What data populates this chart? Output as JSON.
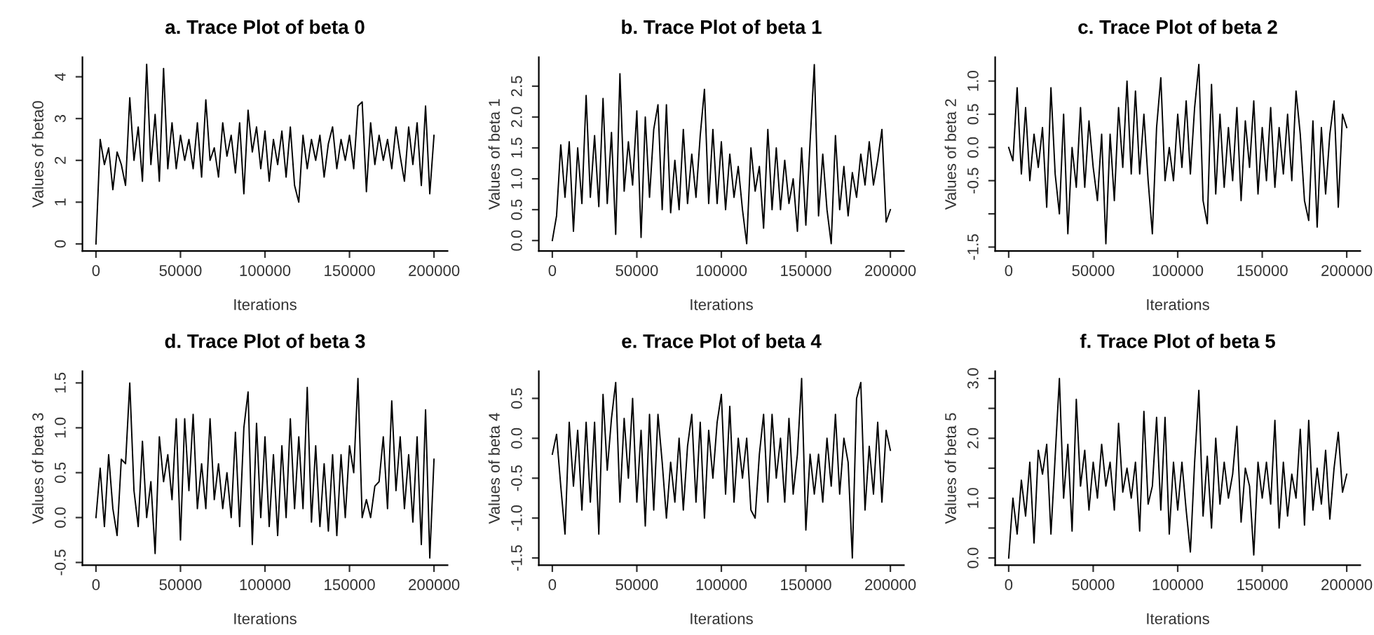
{
  "chart_data": [
    {
      "type": "line",
      "title": "a. Trace Plot of beta 0",
      "xlabel": "Iterations",
      "ylabel": "Values of beta0",
      "color": "#000000",
      "xlim": [
        -8000,
        208000
      ],
      "ylim": [
        -0.17,
        4.47
      ],
      "xticks": [
        0,
        50000,
        100000,
        150000,
        200000
      ],
      "yticks": [
        0,
        1,
        2,
        3,
        4
      ],
      "x": [
        0,
        2500,
        5000,
        7500,
        10000,
        12500,
        15000,
        17500,
        20000,
        22500,
        25000,
        27500,
        30000,
        32500,
        35000,
        37500,
        40000,
        42500,
        45000,
        47500,
        50000,
        52500,
        55000,
        57500,
        60000,
        62500,
        65000,
        67500,
        70000,
        72500,
        75000,
        77500,
        80000,
        82500,
        85000,
        87500,
        90000,
        92500,
        95000,
        97500,
        100000,
        102500,
        105000,
        107500,
        110000,
        112500,
        115000,
        117500,
        120000,
        122500,
        125000,
        127500,
        130000,
        132500,
        135000,
        137500,
        140000,
        142500,
        145000,
        147500,
        150000,
        152500,
        155000,
        157500,
        160000,
        162500,
        165000,
        167500,
        170000,
        172500,
        175000,
        177500,
        180000,
        182500,
        185000,
        187500,
        190000,
        192500,
        195000,
        197500,
        200000
      ],
      "values": [
        0,
        2.5,
        1.9,
        2.3,
        1.3,
        2.2,
        1.9,
        1.4,
        3.5,
        2.0,
        2.8,
        1.5,
        4.3,
        1.9,
        3.1,
        1.5,
        4.2,
        1.8,
        2.9,
        1.8,
        2.6,
        2.0,
        2.5,
        1.8,
        2.9,
        1.6,
        3.45,
        2.0,
        2.3,
        1.6,
        2.9,
        2.1,
        2.6,
        1.7,
        2.9,
        1.2,
        3.2,
        2.2,
        2.8,
        1.8,
        2.7,
        1.5,
        2.5,
        1.9,
        2.7,
        1.6,
        2.8,
        1.4,
        1.0,
        2.6,
        1.8,
        2.5,
        2.0,
        2.6,
        1.6,
        2.4,
        2.8,
        1.8,
        2.5,
        2.0,
        2.6,
        1.8,
        3.3,
        3.4,
        1.25,
        2.9,
        1.9,
        2.6,
        2.0,
        2.5,
        1.8,
        2.8,
        2.1,
        1.5,
        2.8,
        1.9,
        2.9,
        1.4,
        3.3,
        1.2,
        2.6
      ]
    },
    {
      "type": "line",
      "title": "b. Trace Plot of beta 1",
      "xlabel": "Iterations",
      "ylabel": "Values of beta 1",
      "color": "#000000",
      "xlim": [
        -8000,
        208000
      ],
      "ylim": [
        -0.17,
        2.97
      ],
      "xticks": [
        0,
        50000,
        100000,
        150000,
        200000
      ],
      "yticks": [
        {
          "value": 0,
          "label": "0.0"
        },
        0.5,
        {
          "value": 1,
          "label": "1.0"
        },
        1.5,
        {
          "value": 2,
          "label": "2.0"
        },
        2.5
      ],
      "x": [
        0,
        2500,
        5000,
        7500,
        10000,
        12500,
        15000,
        17500,
        20000,
        22500,
        25000,
        27500,
        30000,
        32500,
        35000,
        37500,
        40000,
        42500,
        45000,
        47500,
        50000,
        52500,
        55000,
        57500,
        60000,
        62500,
        65000,
        67500,
        70000,
        72500,
        75000,
        77500,
        80000,
        82500,
        85000,
        87500,
        90000,
        92500,
        95000,
        97500,
        100000,
        102500,
        105000,
        107500,
        110000,
        112500,
        115000,
        117500,
        120000,
        122500,
        125000,
        127500,
        130000,
        132500,
        135000,
        137500,
        140000,
        142500,
        145000,
        147500,
        150000,
        152500,
        155000,
        157500,
        160000,
        162500,
        165000,
        167500,
        170000,
        172500,
        175000,
        177500,
        180000,
        182500,
        185000,
        187500,
        190000,
        192500,
        195000,
        197500,
        200000
      ],
      "values": [
        0,
        0.4,
        1.55,
        0.7,
        1.6,
        0.15,
        1.5,
        0.6,
        2.35,
        0.7,
        1.7,
        0.55,
        2.3,
        0.6,
        1.75,
        0.1,
        2.7,
        0.8,
        1.6,
        0.9,
        2.1,
        0.05,
        2.0,
        0.7,
        1.8,
        2.2,
        0.5,
        2.2,
        0.45,
        1.3,
        0.5,
        1.8,
        0.6,
        1.4,
        0.7,
        1.7,
        2.45,
        0.6,
        1.8,
        0.6,
        1.6,
        0.5,
        1.4,
        0.7,
        1.2,
        0.5,
        -0.05,
        1.5,
        0.8,
        1.2,
        0.2,
        1.8,
        0.5,
        1.5,
        0.5,
        1.3,
        0.6,
        1.0,
        0.15,
        1.5,
        0.25,
        1.6,
        2.85,
        0.4,
        1.4,
        0.5,
        -0.05,
        1.7,
        0.5,
        1.2,
        0.4,
        1.1,
        0.7,
        1.4,
        0.9,
        1.6,
        0.9,
        1.3,
        1.8,
        0.3,
        0.5
      ]
    },
    {
      "type": "line",
      "title": "c. Trace Plot of beta 2",
      "xlabel": "Iterations",
      "ylabel": "Values of beta 2",
      "color": "#000000",
      "xlim": [
        -8000,
        208000
      ],
      "ylim": [
        -1.56,
        1.36
      ],
      "xticks": [
        0,
        50000,
        100000,
        150000,
        200000
      ],
      "yticks": [
        {
          "value": -1.5,
          "label": "-1.5"
        },
        {
          "value": -1.0,
          "label": null
        },
        {
          "value": -0.5,
          "label": "-0.5"
        },
        {
          "value": 0.0,
          "label": "0.0"
        },
        {
          "value": 0.5,
          "label": "0.5"
        },
        {
          "value": 1.0,
          "label": "1.0"
        }
      ],
      "x": [
        0,
        2500,
        5000,
        7500,
        10000,
        12500,
        15000,
        17500,
        20000,
        22500,
        25000,
        27500,
        30000,
        32500,
        35000,
        37500,
        40000,
        42500,
        45000,
        47500,
        50000,
        52500,
        55000,
        57500,
        60000,
        62500,
        65000,
        67500,
        70000,
        72500,
        75000,
        77500,
        80000,
        82500,
        85000,
        87500,
        90000,
        92500,
        95000,
        97500,
        100000,
        102500,
        105000,
        107500,
        110000,
        112500,
        115000,
        117500,
        120000,
        122500,
        125000,
        127500,
        130000,
        132500,
        135000,
        137500,
        140000,
        142500,
        145000,
        147500,
        150000,
        152500,
        155000,
        157500,
        160000,
        162500,
        165000,
        167500,
        170000,
        172500,
        175000,
        177500,
        180000,
        182500,
        185000,
        187500,
        190000,
        192500,
        195000,
        197500,
        200000
      ],
      "values": [
        0,
        -0.2,
        0.9,
        -0.4,
        0.6,
        -0.5,
        0.2,
        -0.3,
        0.3,
        -0.9,
        0.9,
        -0.4,
        -1.0,
        0.5,
        -1.3,
        0.0,
        -0.6,
        0.6,
        -0.6,
        0.4,
        -0.3,
        -0.8,
        0.2,
        -1.45,
        0.2,
        -0.8,
        0.6,
        -0.3,
        1.0,
        -0.4,
        0.85,
        -0.4,
        0.5,
        -0.5,
        -1.3,
        0.3,
        1.05,
        -0.5,
        0.0,
        -0.5,
        0.5,
        -0.3,
        0.7,
        -0.4,
        0.6,
        1.25,
        -0.8,
        -1.15,
        0.95,
        -0.7,
        0.5,
        -0.6,
        0.3,
        -0.5,
        0.6,
        -0.8,
        0.4,
        -0.3,
        0.7,
        -0.7,
        0.3,
        -0.5,
        0.6,
        -0.6,
        0.3,
        -0.4,
        0.5,
        -0.5,
        0.85,
        0.2,
        -0.8,
        -1.1,
        0.4,
        -1.2,
        0.3,
        -0.7,
        0.2,
        0.7,
        -0.9,
        0.5,
        0.3
      ]
    },
    {
      "type": "line",
      "title": "d. Trace Plot of beta 3",
      "xlabel": "Iterations",
      "ylabel": "Values of beta 3",
      "color": "#000000",
      "xlim": [
        -8000,
        208000
      ],
      "ylim": [
        -0.53,
        1.63
      ],
      "xticks": [
        0,
        50000,
        100000,
        150000,
        200000
      ],
      "yticks": [
        -0.5,
        {
          "value": 0,
          "label": "0.0"
        },
        0.5,
        {
          "value": 1,
          "label": "1.0"
        },
        1.5
      ],
      "x": [
        0,
        2500,
        5000,
        7500,
        10000,
        12500,
        15000,
        17500,
        20000,
        22500,
        25000,
        27500,
        30000,
        32500,
        35000,
        37500,
        40000,
        42500,
        45000,
        47500,
        50000,
        52500,
        55000,
        57500,
        60000,
        62500,
        65000,
        67500,
        70000,
        72500,
        75000,
        77500,
        80000,
        82500,
        85000,
        87500,
        90000,
        92500,
        95000,
        97500,
        100000,
        102500,
        105000,
        107500,
        110000,
        112500,
        115000,
        117500,
        120000,
        122500,
        125000,
        127500,
        130000,
        132500,
        135000,
        137500,
        140000,
        142500,
        145000,
        147500,
        150000,
        152500,
        155000,
        157500,
        160000,
        162500,
        165000,
        167500,
        170000,
        172500,
        175000,
        177500,
        180000,
        182500,
        185000,
        187500,
        190000,
        192500,
        195000,
        197500,
        200000
      ],
      "values": [
        0,
        0.55,
        -0.1,
        0.7,
        0.1,
        -0.2,
        0.65,
        0.6,
        1.5,
        0.3,
        -0.1,
        0.85,
        0.0,
        0.4,
        -0.4,
        0.9,
        0.4,
        0.7,
        0.2,
        1.1,
        -0.25,
        1.1,
        0.3,
        1.15,
        0.1,
        0.6,
        0.1,
        1.1,
        0.2,
        0.6,
        0.1,
        0.5,
        0.0,
        0.95,
        -0.1,
        1.0,
        1.4,
        -0.3,
        1.05,
        0.0,
        0.9,
        -0.1,
        0.7,
        -0.2,
        0.8,
        0.0,
        1.1,
        0.1,
        0.9,
        0.1,
        1.45,
        -0.05,
        0.8,
        -0.1,
        0.6,
        -0.15,
        0.7,
        -0.2,
        0.7,
        0.0,
        0.8,
        0.5,
        1.55,
        0.0,
        0.2,
        0.0,
        0.35,
        0.4,
        0.9,
        0.1,
        1.3,
        0.3,
        0.9,
        0.1,
        0.7,
        -0.05,
        0.9,
        -0.3,
        1.2,
        -0.45,
        0.65
      ]
    },
    {
      "type": "line",
      "title": "e. Trace Plot of beta 4",
      "xlabel": "Iterations",
      "ylabel": "Values of beta 4",
      "color": "#000000",
      "xlim": [
        -8000,
        208000
      ],
      "ylim": [
        -1.59,
        0.84
      ],
      "xticks": [
        0,
        50000,
        100000,
        150000,
        200000
      ],
      "yticks": [
        -1.5,
        {
          "value": -1,
          "label": "-1.0"
        },
        -0.5,
        {
          "value": 0,
          "label": "0.0"
        },
        0.5
      ],
      "x": [
        0,
        2500,
        5000,
        7500,
        10000,
        12500,
        15000,
        17500,
        20000,
        22500,
        25000,
        27500,
        30000,
        32500,
        35000,
        37500,
        40000,
        42500,
        45000,
        47500,
        50000,
        52500,
        55000,
        57500,
        60000,
        62500,
        65000,
        67500,
        70000,
        72500,
        75000,
        77500,
        80000,
        82500,
        85000,
        87500,
        90000,
        92500,
        95000,
        97500,
        100000,
        102500,
        105000,
        107500,
        110000,
        112500,
        115000,
        117500,
        120000,
        122500,
        125000,
        127500,
        130000,
        132500,
        135000,
        137500,
        140000,
        142500,
        145000,
        147500,
        150000,
        152500,
        155000,
        157500,
        160000,
        162500,
        165000,
        167500,
        170000,
        172500,
        175000,
        177500,
        180000,
        182500,
        185000,
        187500,
        190000,
        192500,
        195000,
        197500,
        200000
      ],
      "values": [
        -0.2,
        0.05,
        -0.6,
        -1.2,
        0.2,
        -0.6,
        0.1,
        -0.9,
        0.2,
        -0.8,
        0.2,
        -1.2,
        0.55,
        -0.4,
        0.25,
        0.7,
        -0.8,
        0.25,
        -0.5,
        0.5,
        -0.8,
        0.1,
        -1.1,
        0.3,
        -0.9,
        0.3,
        -0.3,
        -1.0,
        -0.3,
        -0.8,
        0.0,
        -0.9,
        -0.1,
        0.3,
        -0.8,
        0.2,
        -1.0,
        0.1,
        -0.5,
        0.2,
        0.55,
        -0.7,
        0.4,
        -0.8,
        0.0,
        -0.5,
        0.0,
        -0.9,
        -1.0,
        -0.2,
        0.3,
        -0.8,
        0.3,
        -0.5,
        0.0,
        -0.8,
        0.25,
        -0.7,
        -0.2,
        0.75,
        -1.15,
        -0.2,
        -0.7,
        -0.2,
        -0.8,
        0.0,
        -0.6,
        0.3,
        -0.7,
        0.0,
        -0.3,
        -1.5,
        0.5,
        0.7,
        -0.9,
        -0.1,
        -0.7,
        0.2,
        -0.8,
        0.1,
        -0.15
      ]
    },
    {
      "type": "line",
      "title": "f. Trace Plot of beta 5",
      "xlabel": "Iterations",
      "ylabel": "Values of beta 5",
      "color": "#000000",
      "xlim": [
        -8000,
        208000
      ],
      "ylim": [
        -0.12,
        3.12
      ],
      "xticks": [
        0,
        50000,
        100000,
        150000,
        200000
      ],
      "yticks": [
        {
          "value": 0.0,
          "label": "0.0"
        },
        {
          "value": 0.5,
          "label": null
        },
        {
          "value": 1.0,
          "label": "1.0"
        },
        {
          "value": 1.5,
          "label": null
        },
        {
          "value": 2.0,
          "label": "2.0"
        },
        {
          "value": 2.5,
          "label": null
        },
        {
          "value": 3.0,
          "label": "3.0"
        }
      ],
      "x": [
        0,
        2500,
        5000,
        7500,
        10000,
        12500,
        15000,
        17500,
        20000,
        22500,
        25000,
        27500,
        30000,
        32500,
        35000,
        37500,
        40000,
        42500,
        45000,
        47500,
        50000,
        52500,
        55000,
        57500,
        60000,
        62500,
        65000,
        67500,
        70000,
        72500,
        75000,
        77500,
        80000,
        82500,
        85000,
        87500,
        90000,
        92500,
        95000,
        97500,
        100000,
        102500,
        105000,
        107500,
        110000,
        112500,
        115000,
        117500,
        120000,
        122500,
        125000,
        127500,
        130000,
        132500,
        135000,
        137500,
        140000,
        142500,
        145000,
        147500,
        150000,
        152500,
        155000,
        157500,
        160000,
        162500,
        165000,
        167500,
        170000,
        172500,
        175000,
        177500,
        180000,
        182500,
        185000,
        187500,
        190000,
        192500,
        195000,
        197500,
        200000
      ],
      "values": [
        0,
        1.0,
        0.4,
        1.3,
        0.7,
        1.6,
        0.25,
        1.8,
        1.4,
        1.9,
        0.4,
        1.7,
        3.0,
        1.0,
        1.9,
        0.45,
        2.65,
        1.2,
        1.8,
        0.8,
        1.6,
        1.0,
        1.9,
        1.2,
        1.6,
        0.8,
        2.25,
        1.1,
        1.5,
        1.0,
        1.6,
        0.45,
        2.45,
        0.9,
        1.2,
        2.35,
        0.8,
        2.35,
        0.4,
        1.6,
        0.8,
        1.6,
        0.8,
        0.1,
        1.6,
        2.8,
        0.7,
        1.7,
        0.5,
        2.0,
        0.9,
        1.6,
        1.0,
        1.4,
        2.2,
        0.6,
        1.5,
        1.2,
        0.05,
        1.6,
        1.0,
        1.6,
        0.9,
        2.3,
        0.5,
        1.6,
        0.7,
        1.4,
        1.0,
        2.15,
        0.55,
        2.3,
        0.8,
        1.5,
        0.9,
        1.8,
        0.65,
        1.5,
        2.1,
        1.1,
        1.4
      ]
    }
  ]
}
